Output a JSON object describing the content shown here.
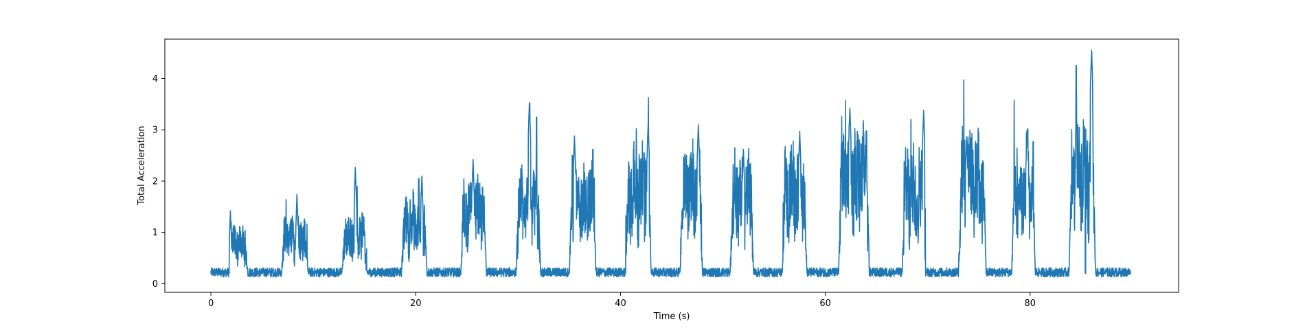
{
  "chart_data": {
    "type": "line",
    "title": "",
    "xlabel": "Time (s)",
    "ylabel": "Total Acceleration",
    "xlim": [
      -4.5,
      94.5
    ],
    "ylim": [
      -0.17,
      4.77
    ],
    "xticks": [
      0,
      20,
      40,
      60,
      80
    ],
    "yticks": [
      0,
      1,
      2,
      3,
      4
    ],
    "grid": false,
    "legend": "none",
    "color": "#1f77b4",
    "baseline": 0.22,
    "bursts": [
      {
        "start": 1.8,
        "end": 3.6,
        "level": 0.75,
        "peak_t": 1.9,
        "peak": 1.42
      },
      {
        "start": 6.9,
        "end": 9.5,
        "level": 0.85,
        "peak_t": 8.4,
        "peak": 1.74
      },
      {
        "start": 12.8,
        "end": 15.2,
        "level": 0.95,
        "peak_t": 14.1,
        "peak": 2.27
      },
      {
        "start": 18.6,
        "end": 21.1,
        "level": 1.15,
        "peak_t": 20.6,
        "peak": 2.1
      },
      {
        "start": 24.4,
        "end": 26.9,
        "level": 1.35,
        "peak_t": 25.6,
        "peak": 2.42
      },
      {
        "start": 29.8,
        "end": 32.2,
        "level": 1.55,
        "peak_t": 31.1,
        "peak": 3.53
      },
      {
        "start": 35.0,
        "end": 37.6,
        "level": 1.5,
        "peak_t": 35.5,
        "peak": 2.88
      },
      {
        "start": 40.5,
        "end": 43.0,
        "level": 1.8,
        "peak_t": 42.7,
        "peak": 3.14
      },
      {
        "start": 45.8,
        "end": 48.0,
        "level": 1.8,
        "peak_t": 47.6,
        "peak": 3.1
      },
      {
        "start": 50.7,
        "end": 53.0,
        "level": 1.65,
        "peak_t": 52.0,
        "peak": 2.62
      },
      {
        "start": 55.8,
        "end": 58.2,
        "level": 1.8,
        "peak_t": 57.5,
        "peak": 2.97
      },
      {
        "start": 61.3,
        "end": 64.3,
        "level": 2.0,
        "peak_t": 62.4,
        "peak": 3.42
      },
      {
        "start": 67.5,
        "end": 69.8,
        "level": 1.75,
        "peak_t": 69.6,
        "peak": 3.38
      },
      {
        "start": 73.0,
        "end": 75.7,
        "level": 1.95,
        "peak_t": 73.8,
        "peak": 2.87
      },
      {
        "start": 78.2,
        "end": 80.5,
        "level": 1.7,
        "peak_t": 79.7,
        "peak": 3.0
      },
      {
        "start": 83.8,
        "end": 86.4,
        "level": 2.1,
        "peak_t": 86.0,
        "peak": 4.55
      }
    ],
    "spikes": [
      {
        "t": 84.5,
        "v": 4.25
      },
      {
        "t": 85.4,
        "v": 0.2
      },
      {
        "t": 31.8,
        "v": 3.25
      },
      {
        "t": 20.3,
        "v": 2.05
      },
      {
        "t": 64.0,
        "v": 2.98
      },
      {
        "t": 80.3,
        "v": 2.77
      },
      {
        "t": 35.3,
        "v": 2.5
      },
      {
        "t": 37.3,
        "v": 2.62
      },
      {
        "t": 42.3,
        "v": 2.55
      }
    ],
    "x_end": 89.8
  }
}
